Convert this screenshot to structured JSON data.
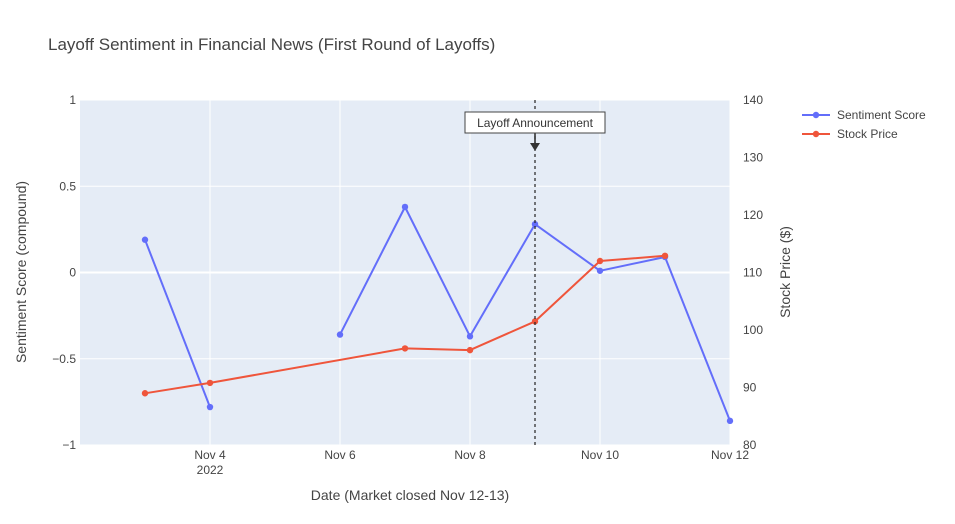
{
  "chart_data": {
    "type": "line",
    "title": "Layoff Sentiment in Financial News (First Round of Layoffs)",
    "xlabel": "Date (Market closed Nov 12-13)",
    "ylabel": "Sentiment Score (compound)",
    "y2label": "Stock Price ($)",
    "xlim": [
      "2022-11-02",
      "2022-11-12"
    ],
    "ylim": [
      -1,
      1
    ],
    "y2lim": [
      80,
      140
    ],
    "x_ticks": [
      {
        "date": "2022-11-04",
        "label": "Nov 4",
        "sublabel": "2022"
      },
      {
        "date": "2022-11-06",
        "label": "Nov 6",
        "sublabel": ""
      },
      {
        "date": "2022-11-08",
        "label": "Nov 8",
        "sublabel": ""
      },
      {
        "date": "2022-11-10",
        "label": "Nov 10",
        "sublabel": ""
      },
      {
        "date": "2022-11-12",
        "label": "Nov 12",
        "sublabel": ""
      }
    ],
    "y_ticks": [
      {
        "value": 1,
        "label": "1"
      },
      {
        "value": 0.5,
        "label": "0.5"
      },
      {
        "value": 0,
        "label": "0"
      },
      {
        "value": -0.5,
        "label": "−0.5"
      },
      {
        "value": -1,
        "label": "−1"
      }
    ],
    "y2_ticks": [
      {
        "value": 140,
        "label": "140"
      },
      {
        "value": 130,
        "label": "130"
      },
      {
        "value": 120,
        "label": "120"
      },
      {
        "value": 110,
        "label": "110"
      },
      {
        "value": 100,
        "label": "100"
      },
      {
        "value": 90,
        "label": "90"
      },
      {
        "value": 80,
        "label": "80"
      }
    ],
    "grid": true,
    "legend_position": "top-right",
    "series": [
      {
        "name": "Sentiment Score",
        "axis": "y",
        "color": "#636efa",
        "segments": [
          [
            {
              "x": "2022-11-03",
              "y": 0.19
            },
            {
              "x": "2022-11-04",
              "y": -0.78
            }
          ],
          [
            {
              "x": "2022-11-06",
              "y": -0.36
            },
            {
              "x": "2022-11-07",
              "y": 0.38
            },
            {
              "x": "2022-11-08",
              "y": -0.37
            },
            {
              "x": "2022-11-09",
              "y": 0.28
            },
            {
              "x": "2022-11-10",
              "y": 0.01
            },
            {
              "x": "2022-11-11",
              "y": 0.09
            },
            {
              "x": "2022-11-12",
              "y": -0.86
            }
          ]
        ]
      },
      {
        "name": "Stock Price",
        "axis": "y2",
        "color": "#ef553b",
        "segments": [
          [
            {
              "x": "2022-11-03",
              "y": 89.0
            },
            {
              "x": "2022-11-04",
              "y": 90.8
            },
            {
              "x": "2022-11-07",
              "y": 96.8
            },
            {
              "x": "2022-11-08",
              "y": 96.5
            },
            {
              "x": "2022-11-09",
              "y": 101.5
            },
            {
              "x": "2022-11-10",
              "y": 112.0
            },
            {
              "x": "2022-11-11",
              "y": 112.9
            }
          ]
        ]
      }
    ],
    "annotations": [
      {
        "text": "Layoff Announcement",
        "x": "2022-11-09",
        "type": "vline-arrow"
      }
    ]
  }
}
